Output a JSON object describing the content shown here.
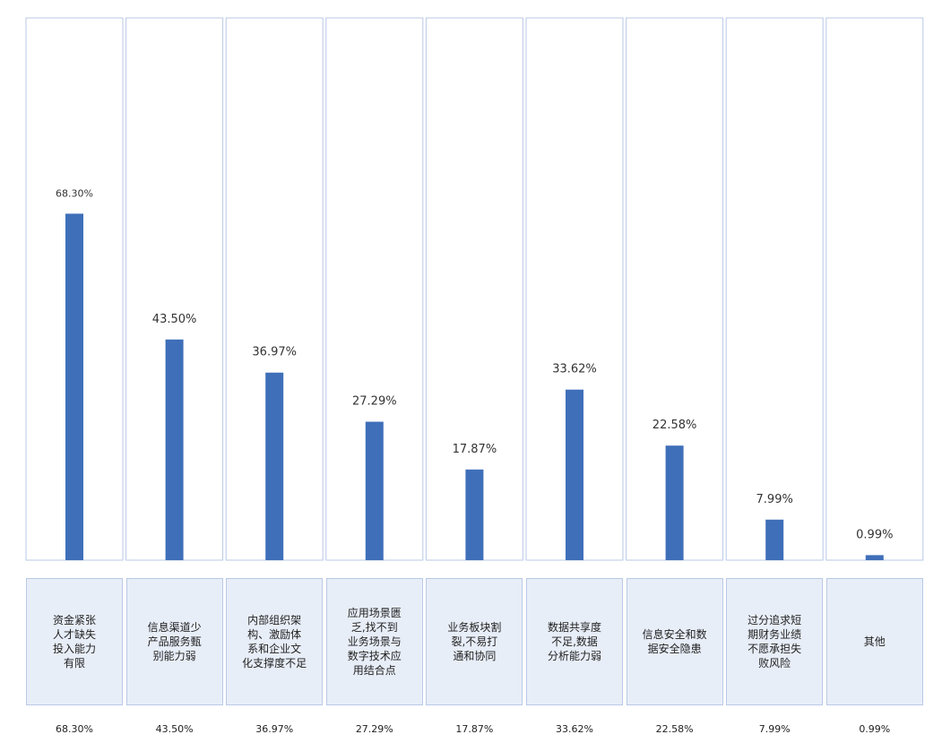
{
  "chart_data": {
    "type": "bar",
    "categories": [
      "资金紧张\n人才缺失\n投入能力\n有限",
      "信息渠道少\n产品服务甄\n别能力弱",
      "内部组织架\n构、激励体\n系和企业文\n化支撑度不足",
      "应用场景匮\n乏,找不到\n业务场景与\n数字技术应\n用结合点",
      "业务板块割\n裂,不易打\n通和协同",
      "数据共享度\n不足,数据\n分析能力弱",
      "信息安全和数\n据安全隐患",
      "过分追求短\n期财务业绩\n不愿承担失\n败风险",
      "其他"
    ],
    "values": [
      68.3,
      43.5,
      36.97,
      27.29,
      17.87,
      33.62,
      22.58,
      7.99,
      0.99
    ],
    "labels": [
      "68.30%",
      "43.50%",
      "36.97%",
      "27.29%",
      "17.87%",
      "33.62%",
      "22.58%",
      "7.99%",
      "0.99%"
    ],
    "ylim": [
      0,
      100
    ],
    "grid": false,
    "colors": {
      "bar": "#3f6fb9",
      "border": "#b9c9e6",
      "category_bg": "#e8eef8"
    }
  }
}
